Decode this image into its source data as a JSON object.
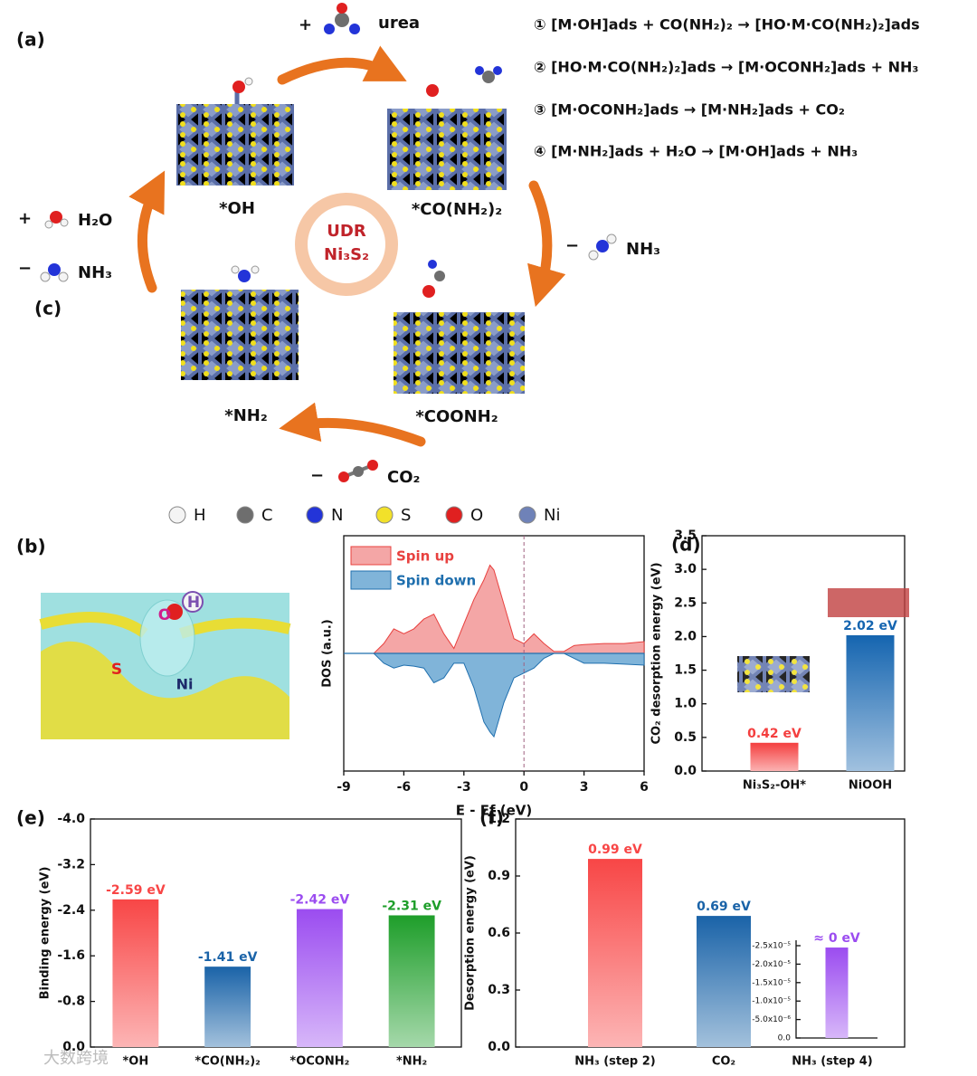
{
  "panel_a": {
    "label": "(a)",
    "add_urea": {
      "sign": "+",
      "name": "urea"
    },
    "remove_nh3_right": {
      "sign": "−",
      "name": "NH₃"
    },
    "add_h2o": {
      "sign": "+",
      "name": "H₂O"
    },
    "remove_nh3_left": {
      "sign": "−",
      "name": "NH₃"
    },
    "remove_co2": {
      "sign": "−",
      "name": "CO₂"
    },
    "center": [
      "UDR",
      "Ni₃S₂"
    ],
    "states": [
      "*OH",
      "*CO(NH₂)₂",
      "*COONH₂",
      "*NH₂"
    ],
    "equations": [
      "① [M·OH]ads + CO(NH₂)₂ → [HO·M·CO(NH₂)₂]ads",
      "② [HO·M·CO(NH₂)₂]ads → [M·OCONH₂]ads + NH₃",
      "③ [M·OCONH₂]ads → [M·NH₂]ads + CO₂",
      "④ [M·NH₂]ads + H₂O → [M·OH]ads + NH₃"
    ],
    "elements": [
      {
        "symbol": "H",
        "color": "#f4f4f4"
      },
      {
        "symbol": "C",
        "color": "#6e6e6e"
      },
      {
        "symbol": "N",
        "color": "#2334d8"
      },
      {
        "symbol": "S",
        "color": "#f2e12a"
      },
      {
        "symbol": "O",
        "color": "#e02020"
      },
      {
        "symbol": "Ni",
        "color": "#6f82b8"
      }
    ]
  },
  "panel_b": {
    "label": "(b)",
    "atoms": [
      "O",
      "H",
      "S",
      "Ni"
    ]
  },
  "chart_data": [
    {
      "label": "(c)",
      "type": "area",
      "xlabel": "E - Ef (eV)",
      "ylabel": "DOS (a.u.)",
      "x": [
        -9,
        -7.5,
        -7,
        -6.5,
        -6,
        -5.5,
        -5,
        -4.5,
        -4,
        -3.5,
        -3,
        -2.5,
        -2,
        -1.7,
        -1.5,
        -1,
        -0.5,
        0,
        0.5,
        1,
        1.5,
        2,
        2.5,
        3,
        4,
        5,
        6
      ],
      "series": [
        {
          "name": "Spin up",
          "color": "#f4a6a6",
          "text_color": "#e8413f",
          "values": [
            0,
            0,
            0.1,
            0.25,
            0.2,
            0.25,
            0.35,
            0.4,
            0.2,
            0.05,
            0.3,
            0.55,
            0.75,
            0.9,
            0.85,
            0.5,
            0.15,
            0.1,
            0.2,
            0.1,
            0.02,
            0.02,
            0.08,
            0.09,
            0.1,
            0.1,
            0.12
          ]
        },
        {
          "name": "Spin down",
          "color": "#80b4d9",
          "text_color": "#1f6fae",
          "values": [
            0,
            0,
            -0.1,
            -0.15,
            -0.12,
            -0.13,
            -0.15,
            -0.3,
            -0.25,
            -0.1,
            -0.1,
            -0.35,
            -0.7,
            -0.8,
            -0.85,
            -0.5,
            -0.25,
            -0.2,
            -0.15,
            -0.05,
            0,
            0,
            -0.05,
            -0.1,
            -0.1,
            -0.11,
            -0.12
          ]
        }
      ],
      "xlim": [
        -9,
        6
      ],
      "xticks": [
        -9,
        -6,
        -3,
        0,
        3,
        6
      ],
      "ylim": [
        -1.2,
        1.2
      ]
    },
    {
      "label": "(d)",
      "type": "bar",
      "ylabel": "CO₂ desorption energy (eV)",
      "categories": [
        "Ni₃S₂-OH*",
        "NiOOH"
      ],
      "values": [
        0.42,
        2.02
      ],
      "value_labels": [
        "0.42 eV",
        "2.02 eV"
      ],
      "colors": [
        "#f43f3f",
        "#1565b0"
      ],
      "ylim": [
        0,
        3.5
      ],
      "yticks": [
        {
          "value": 0,
          "label": "0.0"
        },
        0.5,
        {
          "value": 1,
          "label": "1.0"
        },
        1.5,
        {
          "value": 2,
          "label": "2.0"
        },
        2.5,
        {
          "value": 3,
          "label": "3.0"
        },
        3.5
      ]
    },
    {
      "label": "(e)",
      "type": "bar",
      "ylabel": "Binding energy (eV)",
      "categories": [
        "*OH",
        "*CO(NH₂)₂",
        "*OCONH₂",
        "*NH₂"
      ],
      "values": [
        -2.59,
        -1.41,
        -2.42,
        -2.31
      ],
      "value_labels": [
        "-2.59 eV",
        "-1.41 eV",
        "-2.42 eV",
        "-2.31 eV"
      ],
      "colors": [
        "#f84646",
        "#1a63a8",
        "#9b4cf0",
        "#1e9e2a"
      ],
      "ylim": [
        0,
        -4.0
      ],
      "yticks": [
        {
          "value": 0,
          "label": "0.0"
        },
        -0.8,
        -1.6,
        -2.4,
        -3.2,
        {
          "value": -4,
          "label": "-4.0"
        }
      ]
    },
    {
      "label": "(f)",
      "type": "bar",
      "ylabel": "Desorption energy (eV)",
      "categories": [
        "NH₃ (step 2)",
        "CO₂",
        "NH₃ (step 4)"
      ],
      "values": [
        0.99,
        0.69,
        null
      ],
      "value_labels": [
        "0.99 eV",
        "0.69 eV",
        null
      ],
      "colors": [
        "#f84646",
        "#1a63a8",
        null
      ],
      "ylim": [
        0,
        1.2
      ],
      "yticks": [
        {
          "value": 0,
          "label": "0.0"
        },
        0.3,
        0.6,
        0.9,
        1.2
      ]
    },
    {
      "type": "bar",
      "values": [
        -2.45e-05
      ],
      "value_labels": [
        "≈ 0 eV"
      ],
      "colors": [
        "#9b4cf0"
      ],
      "ylim": [
        0,
        -2.5e-05
      ],
      "yticks": [
        {
          "value": 0,
          "label": "0.0"
        },
        {
          "value": -5e-06,
          "label": "-5.0x10⁻⁶"
        },
        {
          "value": -1e-05,
          "label": "-1.0x10⁻⁵"
        },
        {
          "value": -1.5e-05,
          "label": "-1.5x10⁻⁵"
        },
        {
          "value": -2e-05,
          "label": "-2.0x10⁻⁵"
        },
        {
          "value": -2.5e-05,
          "label": "-2.5x10⁻⁵"
        }
      ]
    }
  ],
  "watermark": "大数跨境"
}
